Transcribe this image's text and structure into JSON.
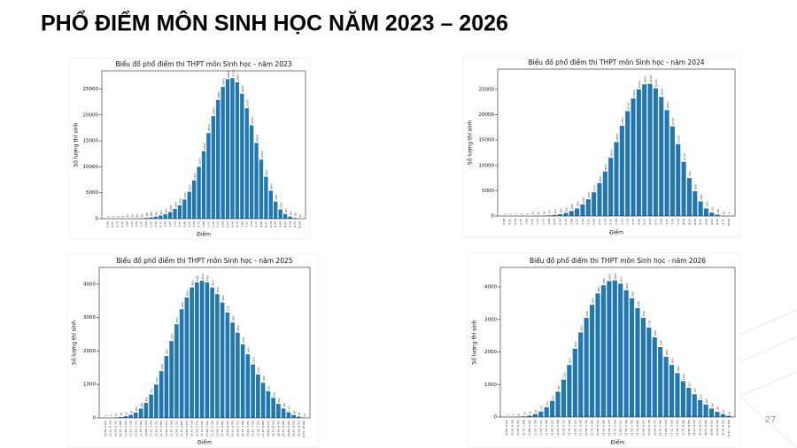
{
  "slide": {
    "title": "PHỔ ĐIỂM MÔN SINH HỌC NĂM 2023 – 2026",
    "page": "27"
  },
  "chart_data": [
    {
      "type": "bar",
      "title": "Biểu đồ phổ điểm thi THPT môn Sinh học - năm 2023",
      "x_label": "Điểm",
      "y_label": "Số lượng thí sinh",
      "color": "#1f77b4",
      "categories": [
        "0.00",
        "0.25",
        "0.50",
        "0.75",
        "1.00",
        "1.25",
        "1.50",
        "1.75",
        "2.00",
        "2.25",
        "2.50",
        "2.75",
        "3.00",
        "3.25",
        "3.50",
        "3.75",
        "4.00",
        "4.25",
        "4.50",
        "4.75",
        "5.00",
        "5.25",
        "5.50",
        "5.75",
        "6.00",
        "6.25",
        "6.50",
        "6.75",
        "7.00",
        "7.25",
        "7.50",
        "7.75",
        "8.00",
        "8.25",
        "8.50",
        "8.75",
        "9.00",
        "9.25",
        "9.50",
        "9.75",
        "10.00"
      ],
      "values": [
        0,
        0,
        2,
        5,
        10,
        20,
        40,
        80,
        150,
        250,
        400,
        600,
        900,
        1300,
        1900,
        2600,
        3700,
        5200,
        7400,
        10000,
        13000,
        16500,
        19800,
        22900,
        25400,
        26900,
        27100,
        26300,
        24100,
        21300,
        18000,
        14600,
        11400,
        8100,
        5400,
        3300,
        1800,
        900,
        400,
        120,
        20
      ],
      "ylim": [
        0,
        28500
      ],
      "yticks": [
        0,
        5000,
        10000,
        15000,
        20000,
        25000
      ]
    },
    {
      "type": "bar",
      "title": "Biểu đồ phổ điểm thi THPT môn Sinh học - năm 2024",
      "x_label": "Điểm",
      "y_label": "Số lượng thí sinh",
      "color": "#1f77b4",
      "categories": [
        "0.00",
        "0.25",
        "0.50",
        "0.75",
        "1.00",
        "1.25",
        "1.50",
        "1.75",
        "2.00",
        "2.25",
        "2.50",
        "2.75",
        "3.00",
        "3.25",
        "3.50",
        "3.75",
        "4.00",
        "4.25",
        "4.50",
        "4.75",
        "5.00",
        "5.25",
        "5.50",
        "5.75",
        "6.00",
        "6.25",
        "6.50",
        "6.75",
        "7.00",
        "7.25",
        "7.50",
        "7.75",
        "8.00",
        "8.25",
        "8.50",
        "8.75",
        "9.00",
        "9.25",
        "9.50",
        "9.75",
        "10.00"
      ],
      "values": [
        0,
        0,
        1,
        3,
        8,
        15,
        30,
        60,
        120,
        220,
        380,
        620,
        1000,
        1500,
        2300,
        3300,
        4700,
        6500,
        8800,
        11500,
        14600,
        17800,
        20700,
        23200,
        25000,
        26000,
        26100,
        25200,
        23500,
        20900,
        17700,
        14200,
        10700,
        7500,
        4900,
        2900,
        1500,
        700,
        280,
        80,
        10
      ],
      "ylim": [
        0,
        29000
      ],
      "yticks": [
        0,
        5000,
        10000,
        15000,
        20000,
        25000
      ]
    },
    {
      "type": "bar",
      "title": "Biểu đồ phổ điểm thi THPT môn Sinh học - năm 2025",
      "x_label": "Điểm",
      "y_label": "Số lượng thí sinh",
      "color": "#1f77b4",
      "categories": [
        "[0.00, 0.25)",
        "[0.25, 0.50)",
        "[0.50, 0.75)",
        "[0.75, 1.00)",
        "[1.00, 1.25)",
        "[1.25, 1.50)",
        "[1.50, 1.75)",
        "[1.75, 2.00)",
        "[2.00, 2.25)",
        "[2.25, 2.50)",
        "[2.50, 2.75)",
        "[2.75, 3.00)",
        "[3.00, 3.25)",
        "[3.25, 3.50)",
        "[3.50, 3.75)",
        "[3.75, 4.00)",
        "[4.00, 4.25)",
        "[4.25, 4.50)",
        "[4.50, 4.75)",
        "[4.75, 5.00)",
        "[5.00, 5.25)",
        "[5.25, 5.50)",
        "[5.50, 5.75)",
        "[5.75, 6.00)",
        "[6.00, 6.25)",
        "[6.25, 6.50)",
        "[6.50, 6.75)",
        "[6.75, 7.00)",
        "[7.00, 7.25)",
        "[7.25, 7.50)",
        "[7.50, 7.75)",
        "[7.75, 8.00)",
        "[8.00, 8.25)",
        "[8.25, 8.50)",
        "[8.50, 8.75)",
        "[8.75, 9.00)",
        "[9.00, 9.25)",
        "[9.25, 9.50)",
        "[9.50, 9.75)",
        "[9.75, 10.00]"
      ],
      "values": [
        2,
        5,
        10,
        25,
        50,
        90,
        160,
        280,
        450,
        700,
        1000,
        1400,
        1850,
        2300,
        2800,
        3250,
        3600,
        3900,
        4050,
        4100,
        4050,
        3900,
        3700,
        3450,
        3150,
        2850,
        2550,
        2200,
        1900,
        1600,
        1300,
        1050,
        800,
        600,
        420,
        280,
        170,
        90,
        40,
        10
      ],
      "ylim": [
        0,
        4500
      ],
      "yticks": [
        0,
        1000,
        2000,
        3000,
        4000
      ]
    },
    {
      "type": "bar",
      "title": "Biểu đồ phổ điểm thi THPT môn Sinh học - năm 2026",
      "x_label": "Điểm",
      "y_label": "Số lượng thí sinh",
      "color": "#1f77b4",
      "categories": [
        "[0.00, 0.25)",
        "[0.25, 0.50)",
        "[0.50, 0.75)",
        "[0.75, 1.00)",
        "[1.00, 1.25)",
        "[1.25, 1.50)",
        "[1.50, 1.75)",
        "[1.75, 2.00)",
        "[2.00, 2.25)",
        "[2.25, 2.50)",
        "[2.50, 2.75)",
        "[2.75, 3.00)",
        "[3.00, 3.25)",
        "[3.25, 3.50)",
        "[3.50, 3.75)",
        "[3.75, 4.00)",
        "[4.00, 4.25)",
        "[4.25, 4.50)",
        "[4.50, 4.75)",
        "[4.75, 5.00)",
        "[5.00, 5.25)",
        "[5.25, 5.50)",
        "[5.50, 5.75)",
        "[5.75, 6.00)",
        "[6.00, 6.25)",
        "[6.25, 6.50)",
        "[6.50, 6.75)",
        "[6.75, 7.00)",
        "[7.00, 7.25)",
        "[7.25, 7.50)",
        "[7.50, 7.75)",
        "[7.75, 8.00)",
        "[8.00, 8.25)",
        "[8.25, 8.50)",
        "[8.50, 8.75)",
        "[8.75, 9.00)",
        "[9.00, 9.25)",
        "[9.25, 9.50)",
        "[9.50, 9.75)",
        "[9.75, 10.00]"
      ],
      "values": [
        1,
        3,
        8,
        20,
        45,
        90,
        170,
        300,
        500,
        780,
        1150,
        1600,
        2100,
        2600,
        3050,
        3450,
        3800,
        4050,
        4180,
        4200,
        4100,
        3900,
        3650,
        3350,
        3050,
        2750,
        2450,
        2150,
        1850,
        1600,
        1350,
        1100,
        900,
        700,
        520,
        380,
        260,
        160,
        90,
        40
      ],
      "ylim": [
        0,
        4600
      ],
      "yticks": [
        0,
        1000,
        2000,
        3000,
        4000
      ]
    }
  ]
}
